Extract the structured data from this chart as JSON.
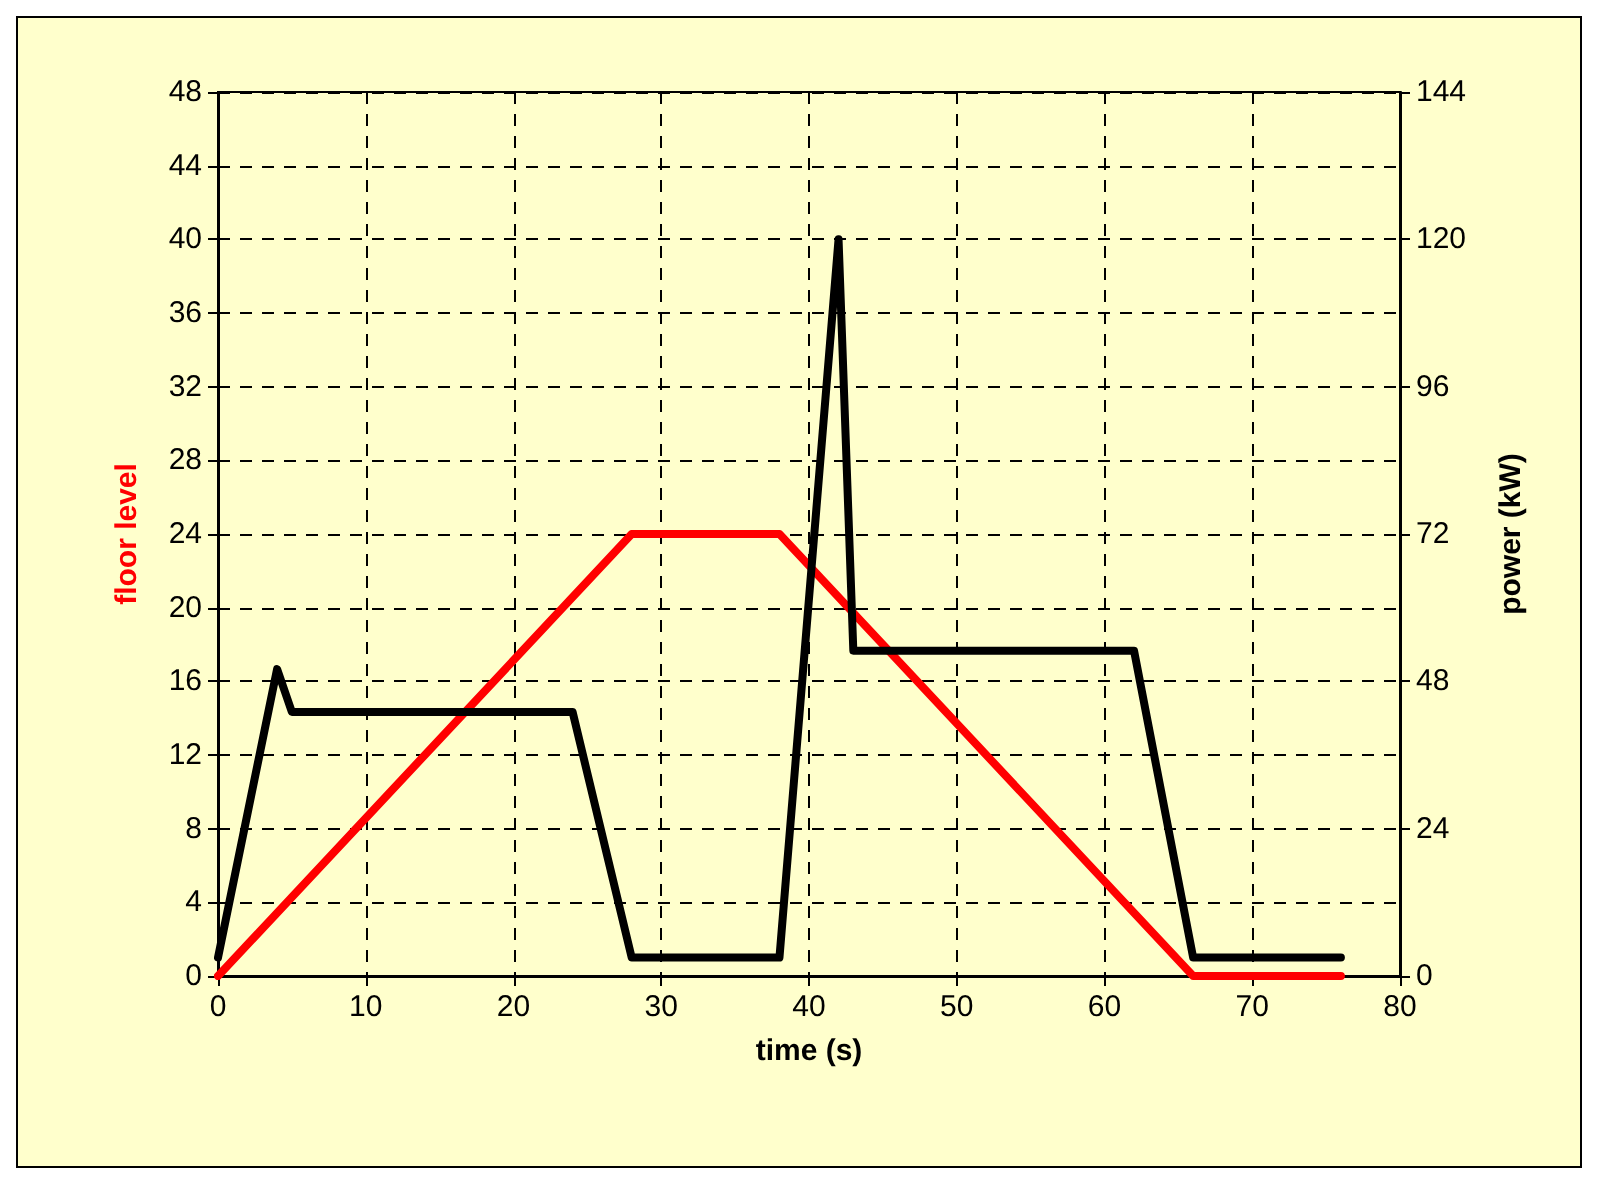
{
  "chart_data": {
    "type": "line",
    "xlabel": "time (s)",
    "ylabel": "floor level",
    "y2label": "power (kW)",
    "xlim": [
      0,
      80
    ],
    "xticks": [
      0,
      10,
      20,
      30,
      40,
      50,
      60,
      70,
      80
    ],
    "ylim": [
      0,
      48
    ],
    "yticks": [
      0,
      4,
      8,
      12,
      16,
      20,
      24,
      28,
      32,
      36,
      40,
      44,
      48
    ],
    "y2lim": [
      0,
      144
    ],
    "y2ticks": [
      0,
      24,
      48,
      72,
      96,
      120,
      144
    ],
    "grid": true,
    "marker": "none",
    "line_style": "solid",
    "series": [
      {
        "color": "#ff0000",
        "x": [
          0,
          28,
          38,
          66,
          76
        ],
        "values": [
          0,
          24,
          24,
          0,
          0
        ]
      },
      {
        "color": "#000000",
        "axis": "y2",
        "x": [
          0,
          4,
          5,
          24,
          28,
          38,
          42,
          43,
          62,
          66,
          76
        ],
        "values": [
          3,
          50,
          43,
          43,
          3,
          3,
          120,
          53,
          53,
          3,
          3
        ]
      }
    ]
  }
}
